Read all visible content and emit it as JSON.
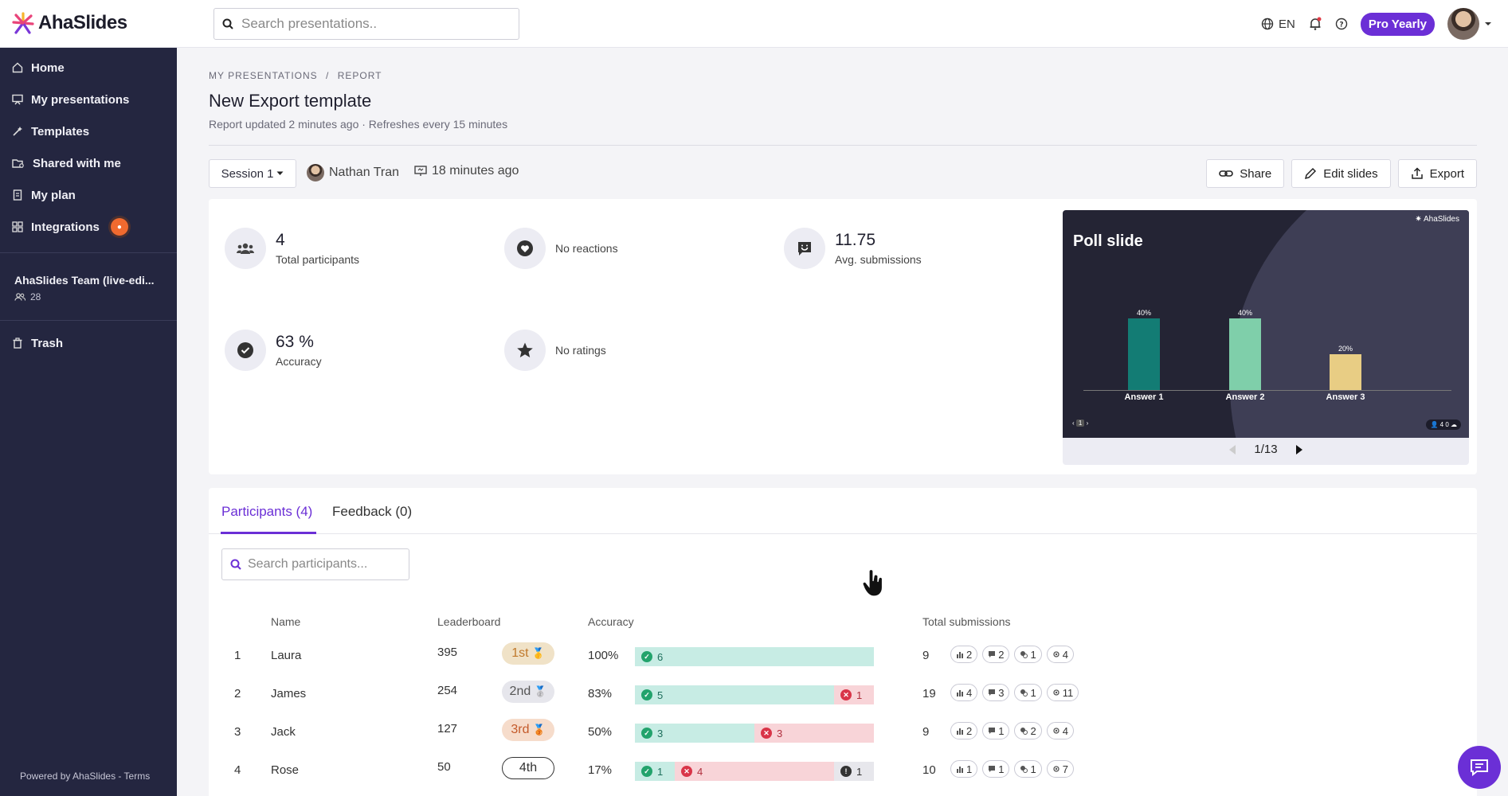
{
  "app": {
    "name": "AhaSlides"
  },
  "topbar": {
    "search_placeholder": "Search presentations..",
    "language": "EN",
    "plan_button": "Pro Yearly"
  },
  "sidebar": {
    "items": [
      {
        "label": "Home",
        "icon": "home-icon"
      },
      {
        "label": "My presentations",
        "icon": "presentation-icon"
      },
      {
        "label": "Templates",
        "icon": "wand-icon"
      },
      {
        "label": "Shared with me",
        "icon": "shared-folder-icon"
      },
      {
        "label": "My plan",
        "icon": "receipt-icon"
      },
      {
        "label": "Integrations",
        "icon": "grid-icon"
      }
    ],
    "team_name": "AhaSlides Team (live-edi...",
    "team_members": "28",
    "trash": "Trash",
    "powered_by": "Powered by AhaSlides",
    "terms": "Terms"
  },
  "breadcrumb": {
    "root": "MY PRESENTATIONS",
    "sep": "/",
    "current": "REPORT"
  },
  "page": {
    "title": "New Export template",
    "subtitle": "Report updated 2 minutes ago · Refreshes every 15 minutes"
  },
  "session": {
    "label": "Session 1",
    "host": "Nathan Tran",
    "time_ago": "18 minutes ago"
  },
  "actions": {
    "share": "Share",
    "edit": "Edit slides",
    "export": "Export"
  },
  "stats": {
    "participants_value": "4",
    "participants_label": "Total participants",
    "reactions": "No reactions",
    "submissions_value": "11.75",
    "submissions_label": "Avg. submissions",
    "accuracy_value": "63 %",
    "accuracy_label": "Accuracy",
    "ratings": "No ratings"
  },
  "preview": {
    "slide_title": "Poll slide",
    "brand": "AhaSlides",
    "pager": "1/13",
    "mini_page": "1",
    "mini_stats": "4  0",
    "chart_data": {
      "type": "bar",
      "categories": [
        "Answer 1",
        "Answer 2",
        "Answer 3"
      ],
      "values": [
        40,
        40,
        20
      ],
      "labels": [
        "40%",
        "40%",
        "20%"
      ],
      "colors": [
        "#137c74",
        "#7fcfaa",
        "#e8cd84"
      ]
    }
  },
  "tabs": {
    "participants": "Participants (4)",
    "feedback": "Feedback (0)"
  },
  "participant_search_placeholder": "Search participants...",
  "table": {
    "headers": {
      "name": "Name",
      "leaderboard": "Leaderboard",
      "accuracy": "Accuracy",
      "submissions": "Total submissions"
    },
    "rows": [
      {
        "idx": "1",
        "name": "Laura",
        "score": "395",
        "rank": "1st",
        "rank_color": "#f0e2c7",
        "rank_text": "#c0782a",
        "accuracy": "100%",
        "ok": 6,
        "bad": 0,
        "na": 0,
        "total": "9",
        "poll": "2",
        "open": "2",
        "qa": "1",
        "quiz": "4"
      },
      {
        "idx": "2",
        "name": "James",
        "score": "254",
        "rank": "2nd",
        "rank_color": "#e6e6ec",
        "rank_text": "#555",
        "accuracy": "83%",
        "ok": 5,
        "bad": 1,
        "na": 0,
        "total": "19",
        "poll": "4",
        "open": "3",
        "qa": "1",
        "quiz": "11"
      },
      {
        "idx": "3",
        "name": "Jack",
        "score": "127",
        "rank": "3rd",
        "rank_color": "#f6dccb",
        "rank_text": "#c45a2a",
        "accuracy": "50%",
        "ok": 3,
        "bad": 3,
        "na": 0,
        "total": "9",
        "poll": "2",
        "open": "1",
        "qa": "2",
        "quiz": "4"
      },
      {
        "idx": "4",
        "name": "Rose",
        "score": "50",
        "rank": "4th",
        "rank_color": "#ffffff",
        "rank_text": "#333",
        "accuracy": "17%",
        "ok": 1,
        "bad": 4,
        "na": 1,
        "total": "10",
        "poll": "1",
        "open": "1",
        "qa": "1",
        "quiz": "7"
      }
    ]
  }
}
